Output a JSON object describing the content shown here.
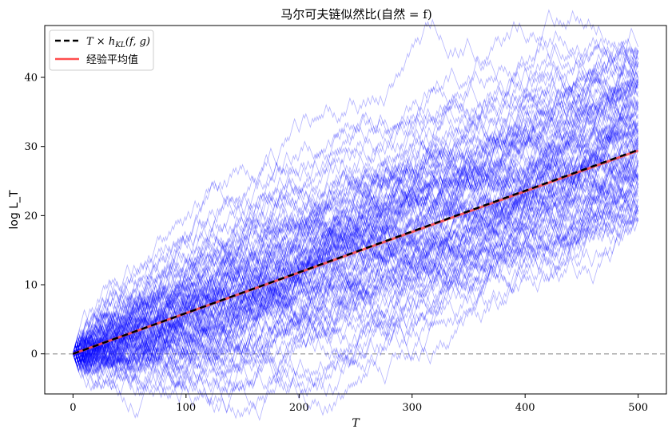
{
  "chart_data": {
    "type": "line",
    "title": "马尔可夫链似然比(自然 = f)",
    "xlabel": "T",
    "ylabel": "log L_T",
    "xlim": [
      -25,
      525
    ],
    "ylim": [
      -5.8,
      47.5
    ],
    "x_ticks": [
      0,
      100,
      200,
      300,
      400,
      500
    ],
    "y_ticks": [
      0,
      10,
      20,
      30,
      40
    ],
    "grid": false,
    "legend_position": "top-left",
    "reference_line": {
      "y": 0,
      "style": "dashed",
      "color": "#aaaaaa"
    },
    "series": [
      {
        "name": "T × h_KL(f, g)",
        "style": "dashed",
        "color": "#000000",
        "x": [
          0,
          500
        ],
        "y": [
          0,
          29.5
        ]
      },
      {
        "name": "经验平均值",
        "style": "solid",
        "color": "#ff4d4d",
        "x": [
          0,
          500
        ],
        "y": [
          0,
          29.4
        ]
      }
    ],
    "simulated_paths": {
      "count": 100,
      "color": "#0000ff",
      "x_range": [
        0,
        500
      ],
      "start": 0,
      "end_range_at_T500": [
        19,
        44.5
      ],
      "min_observed": -3,
      "max_observed": 44.8
    }
  },
  "legend": {
    "items": [
      {
        "label_main": "T × h",
        "label_sub": "KL",
        "label_tail": "(f, g)"
      },
      {
        "label_main": "经验平均值",
        "label_sub": "",
        "label_tail": ""
      }
    ]
  }
}
